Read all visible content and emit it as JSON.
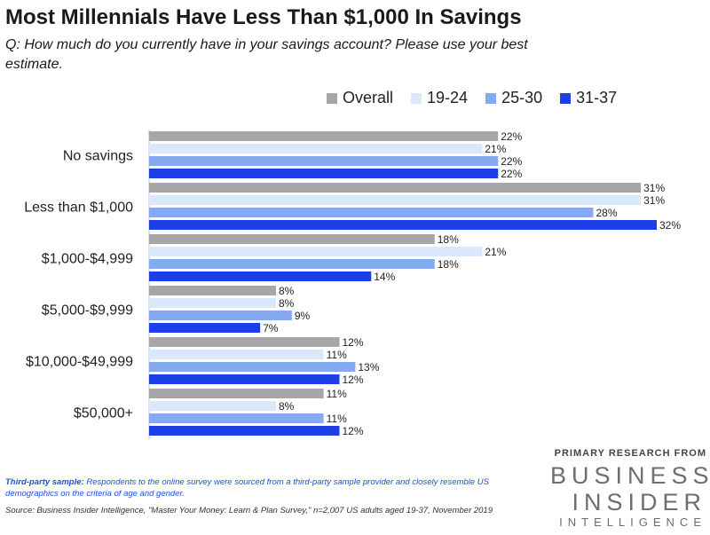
{
  "chart_data": {
    "type": "bar",
    "orientation": "horizontal",
    "title": "Most Millennials Have Less Than $1,000 In Savings",
    "subtitle": "Q: How much do you currently have in your savings account? Please use your best estimate.",
    "categories": [
      "No savings",
      "Less than $1,000",
      "$1,000-$4,999",
      "$5,000-$9,999",
      "$10,000-$49,999",
      "$50,000+"
    ],
    "series": [
      {
        "name": "Overall",
        "color": "#a6a6a6",
        "values": [
          22,
          31,
          18,
          8,
          12,
          11
        ],
        "labels": [
          "22%",
          "31%",
          "18%",
          "8%",
          "12%",
          "11%"
        ]
      },
      {
        "name": "19-24",
        "color": "#d9e8fb",
        "values": [
          21,
          31,
          21,
          8,
          11,
          8
        ],
        "labels": [
          "21%",
          "31%",
          "21%",
          "8%",
          "11%",
          "8%"
        ]
      },
      {
        "name": "25-30",
        "color": "#86aaf0",
        "values": [
          22,
          28,
          18,
          9,
          13,
          11
        ],
        "labels": [
          "22%",
          "28%",
          "18%",
          "9%",
          "13%",
          "11%"
        ]
      },
      {
        "name": "31-37",
        "color": "#1e3fe8",
        "values": [
          22,
          32,
          14,
          7,
          12,
          12
        ],
        "labels": [
          "22%",
          "32%",
          "14%",
          "7%",
          "12%",
          "12%"
        ]
      }
    ],
    "xlim": [
      0,
      32
    ],
    "grid": false,
    "legend": "top-right"
  },
  "footnote": {
    "label": "Third-party sample:",
    "text": " Respondents to the online survey were sourced from a third-party sample provider and closely resemble US demographics on the criteria of age and gender."
  },
  "source": "Source: Business Insider Intelligence, \"Master Your Money: Learn & Plan Survey,\" n=2,007 US adults aged 19-37, November 2019",
  "branding": {
    "tagline": "PRIMARY RESEARCH FROM",
    "line1": "BUSINESS",
    "line2": "INSIDER",
    "line3": "INTELLIGENCE"
  }
}
